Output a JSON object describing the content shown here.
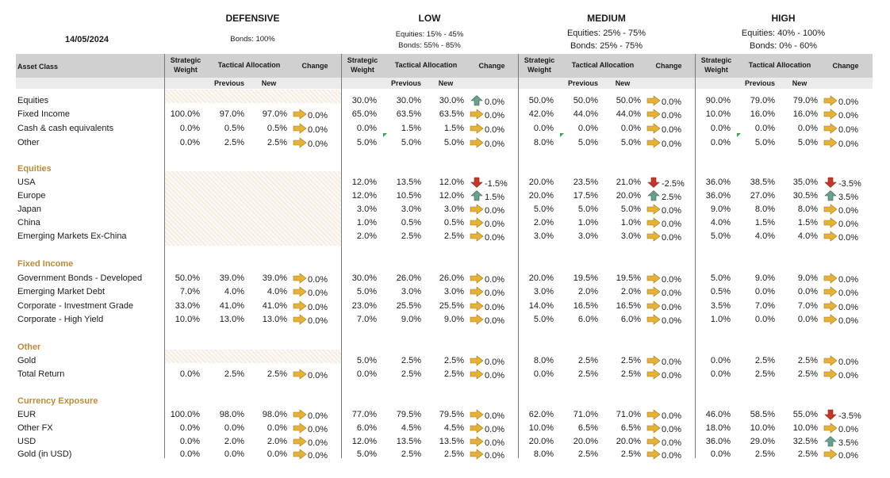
{
  "date": "14/05/2024",
  "colors": {
    "up": "#6a9e8e",
    "down": "#c0392b",
    "flat": "#e4b13a",
    "section": "#b98b3c"
  },
  "headers": {
    "asset_class": "Asset Class",
    "strategic_weight": [
      "Strategic",
      "Weight"
    ],
    "tactical_allocation": "Tactical Allocation",
    "change": "Change",
    "previous": "Previous",
    "new": "New"
  },
  "profiles": [
    {
      "title": "DEFENSIVE",
      "notes": [
        "Bonds: 100%"
      ]
    },
    {
      "title": "LOW",
      "notes": [
        "Equities: 15% - 45%",
        "Bonds: 55% - 85%"
      ]
    },
    {
      "title": "MEDIUM",
      "notes": [
        "Equities: 25% - 75%",
        "Bonds: 25% - 75%"
      ]
    },
    {
      "title": "HIGH",
      "notes": [
        "Equities: 40% - 100%",
        "Bonds: 0% - 60%"
      ]
    }
  ],
  "rows": [
    {
      "label": "Equities",
      "type": "row",
      "vals": [
        null,
        [
          "30.0%",
          "30.0%",
          "30.0%",
          "up",
          "0.0%"
        ],
        [
          "50.0%",
          "50.0%",
          "50.0%",
          "flat",
          "0.0%"
        ],
        [
          "90.0%",
          "79.0%",
          "79.0%",
          "flat",
          "0.0%"
        ]
      ]
    },
    {
      "label": "Fixed Income",
      "type": "row",
      "vals": [
        [
          "100.0%",
          "97.0%",
          "97.0%",
          "flat",
          "0.0%"
        ],
        [
          "65.0%",
          "63.5%",
          "63.5%",
          "flat",
          "0.0%"
        ],
        [
          "42.0%",
          "44.0%",
          "44.0%",
          "flat",
          "0.0%"
        ],
        [
          "10.0%",
          "16.0%",
          "16.0%",
          "flat",
          "0.0%"
        ]
      ]
    },
    {
      "label": "Cash & cash equivalents",
      "type": "row",
      "vals": [
        [
          "0.0%",
          "0.5%",
          "0.5%",
          "flat",
          "0.0%"
        ],
        [
          "0.0%",
          "1.5%",
          "1.5%",
          "flat",
          "0.0%"
        ],
        [
          "0.0%",
          "0.0%",
          "0.0%",
          "flat",
          "0.0%"
        ],
        [
          "0.0%",
          "0.0%",
          "0.0%",
          "flat",
          "0.0%"
        ]
      ]
    },
    {
      "label": "Other",
      "type": "row",
      "vals": [
        [
          "0.0%",
          "2.5%",
          "2.5%",
          "flat",
          "0.0%"
        ],
        [
          "5.0%",
          "5.0%",
          "5.0%",
          "flat",
          "0.0%"
        ],
        [
          "8.0%",
          "5.0%",
          "5.0%",
          "flat",
          "0.0%"
        ],
        [
          "0.0%",
          "5.0%",
          "5.0%",
          "flat",
          "0.0%"
        ]
      ]
    },
    {
      "label": "Equities",
      "type": "section"
    },
    {
      "label": "USA",
      "type": "row",
      "vals": [
        null,
        [
          "12.0%",
          "13.5%",
          "12.0%",
          "down",
          "-1.5%"
        ],
        [
          "20.0%",
          "23.5%",
          "21.0%",
          "down",
          "-2.5%"
        ],
        [
          "36.0%",
          "38.5%",
          "35.0%",
          "down",
          "-3.5%"
        ]
      ]
    },
    {
      "label": "Europe",
      "type": "row",
      "vals": [
        null,
        [
          "12.0%",
          "10.5%",
          "12.0%",
          "up",
          "1.5%"
        ],
        [
          "20.0%",
          "17.5%",
          "20.0%",
          "up",
          "2.5%"
        ],
        [
          "36.0%",
          "27.0%",
          "30.5%",
          "up",
          "3.5%"
        ]
      ]
    },
    {
      "label": "Japan",
      "type": "row",
      "vals": [
        null,
        [
          "3.0%",
          "3.0%",
          "3.0%",
          "flat",
          "0.0%"
        ],
        [
          "5.0%",
          "5.0%",
          "5.0%",
          "flat",
          "0.0%"
        ],
        [
          "9.0%",
          "8.0%",
          "8.0%",
          "flat",
          "0.0%"
        ]
      ]
    },
    {
      "label": "China",
      "type": "row",
      "vals": [
        null,
        [
          "1.0%",
          "0.5%",
          "0.5%",
          "flat",
          "0.0%"
        ],
        [
          "2.0%",
          "1.0%",
          "1.0%",
          "flat",
          "0.0%"
        ],
        [
          "4.0%",
          "1.5%",
          "1.5%",
          "flat",
          "0.0%"
        ]
      ]
    },
    {
      "label": "Emerging Markets Ex-China",
      "type": "row",
      "vals": [
        null,
        [
          "2.0%",
          "2.5%",
          "2.5%",
          "flat",
          "0.0%"
        ],
        [
          "3.0%",
          "3.0%",
          "3.0%",
          "flat",
          "0.0%"
        ],
        [
          "5.0%",
          "4.0%",
          "4.0%",
          "flat",
          "0.0%"
        ]
      ]
    },
    {
      "label": "Fixed Income",
      "type": "section"
    },
    {
      "label": "Government Bonds - Developed",
      "type": "row",
      "vals": [
        [
          "50.0%",
          "39.0%",
          "39.0%",
          "flat",
          "0.0%"
        ],
        [
          "30.0%",
          "26.0%",
          "26.0%",
          "flat",
          "0.0%"
        ],
        [
          "20.0%",
          "19.5%",
          "19.5%",
          "flat",
          "0.0%"
        ],
        [
          "5.0%",
          "9.0%",
          "9.0%",
          "flat",
          "0.0%"
        ]
      ]
    },
    {
      "label": "Emerging Market Debt",
      "type": "row",
      "vals": [
        [
          "7.0%",
          "4.0%",
          "4.0%",
          "flat",
          "0.0%"
        ],
        [
          "5.0%",
          "3.0%",
          "3.0%",
          "flat",
          "0.0%"
        ],
        [
          "3.0%",
          "2.0%",
          "2.0%",
          "flat",
          "0.0%"
        ],
        [
          "0.5%",
          "0.0%",
          "0.0%",
          "flat",
          "0.0%"
        ]
      ]
    },
    {
      "label": "Corporate - Investment Grade",
      "type": "row",
      "vals": [
        [
          "33.0%",
          "41.0%",
          "41.0%",
          "flat",
          "0.0%"
        ],
        [
          "23.0%",
          "25.5%",
          "25.5%",
          "flat",
          "0.0%"
        ],
        [
          "14.0%",
          "16.5%",
          "16.5%",
          "flat",
          "0.0%"
        ],
        [
          "3.5%",
          "7.0%",
          "7.0%",
          "flat",
          "0.0%"
        ]
      ]
    },
    {
      "label": "Corporate - High Yield",
      "type": "row",
      "vals": [
        [
          "10.0%",
          "13.0%",
          "13.0%",
          "flat",
          "0.0%"
        ],
        [
          "7.0%",
          "9.0%",
          "9.0%",
          "flat",
          "0.0%"
        ],
        [
          "5.0%",
          "6.0%",
          "6.0%",
          "flat",
          "0.0%"
        ],
        [
          "1.0%",
          "0.0%",
          "0.0%",
          "flat",
          "0.0%"
        ]
      ]
    },
    {
      "label": "Other",
      "type": "section"
    },
    {
      "label": "Gold",
      "type": "row",
      "vals": [
        null,
        [
          "5.0%",
          "2.5%",
          "2.5%",
          "flat",
          "0.0%"
        ],
        [
          "8.0%",
          "2.5%",
          "2.5%",
          "flat",
          "0.0%"
        ],
        [
          "0.0%",
          "2.5%",
          "2.5%",
          "flat",
          "0.0%"
        ]
      ]
    },
    {
      "label": "Total Return",
      "type": "row",
      "vals": [
        [
          "0.0%",
          "2.5%",
          "2.5%",
          "flat",
          "0.0%"
        ],
        [
          "0.0%",
          "2.5%",
          "2.5%",
          "flat",
          "0.0%"
        ],
        [
          "0.0%",
          "2.5%",
          "2.5%",
          "flat",
          "0.0%"
        ],
        [
          "0.0%",
          "2.5%",
          "2.5%",
          "flat",
          "0.0%"
        ]
      ]
    },
    {
      "label": "Currency Exposure",
      "type": "section"
    },
    {
      "label": "EUR",
      "type": "row",
      "vals": [
        [
          "100.0%",
          "98.0%",
          "98.0%",
          "flat",
          "0.0%"
        ],
        [
          "77.0%",
          "79.5%",
          "79.5%",
          "flat",
          "0.0%"
        ],
        [
          "62.0%",
          "71.0%",
          "71.0%",
          "flat",
          "0.0%"
        ],
        [
          "46.0%",
          "58.5%",
          "55.0%",
          "down",
          "-3.5%"
        ]
      ]
    },
    {
      "label": "Other FX",
      "type": "row",
      "vals": [
        [
          "0.0%",
          "0.0%",
          "0.0%",
          "flat",
          "0.0%"
        ],
        [
          "6.0%",
          "4.5%",
          "4.5%",
          "flat",
          "0.0%"
        ],
        [
          "10.0%",
          "6.5%",
          "6.5%",
          "flat",
          "0.0%"
        ],
        [
          "18.0%",
          "10.0%",
          "10.0%",
          "flat",
          "0.0%"
        ]
      ]
    },
    {
      "label": "USD",
      "type": "row",
      "vals": [
        [
          "0.0%",
          "2.0%",
          "2.0%",
          "flat",
          "0.0%"
        ],
        [
          "12.0%",
          "13.5%",
          "13.5%",
          "flat",
          "0.0%"
        ],
        [
          "20.0%",
          "20.0%",
          "20.0%",
          "flat",
          "0.0%"
        ],
        [
          "36.0%",
          "29.0%",
          "32.5%",
          "up",
          "3.5%"
        ]
      ]
    },
    {
      "label": "Gold (in USD)",
      "type": "row",
      "vals": [
        [
          "0.0%",
          "0.0%",
          "0.0%",
          "flat",
          "0.0%"
        ],
        [
          "5.0%",
          "2.5%",
          "2.5%",
          "flat",
          "0.0%"
        ],
        [
          "8.0%",
          "2.5%",
          "2.5%",
          "flat",
          "0.0%"
        ],
        [
          "0.0%",
          "2.5%",
          "2.5%",
          "flat",
          "0.0%"
        ]
      ]
    }
  ]
}
